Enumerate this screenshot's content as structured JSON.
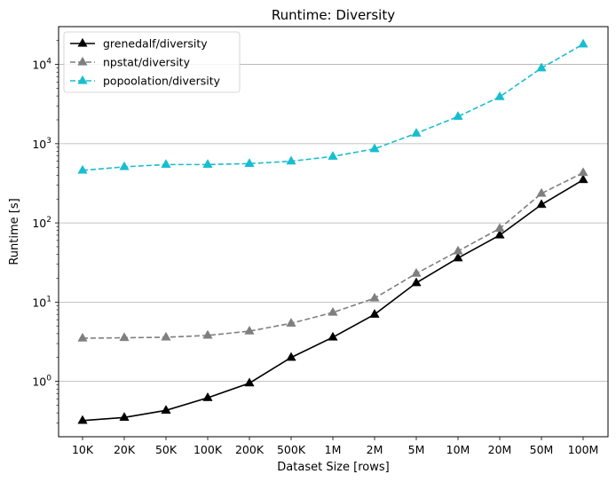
{
  "chart_data": {
    "type": "line",
    "title": "Runtime:  Diversity",
    "xlabel": "Dataset Size  [rows]",
    "ylabel": "Runtime  [s]",
    "yscale": "log",
    "ylim": [
      0.2,
      30000
    ],
    "y_ticks": [
      {
        "value": 1,
        "base": "10",
        "exp": "0"
      },
      {
        "value": 10,
        "base": "10",
        "exp": "1"
      },
      {
        "value": 100,
        "base": "10",
        "exp": "2"
      },
      {
        "value": 1000,
        "base": "10",
        "exp": "3"
      },
      {
        "value": 10000,
        "base": "10",
        "exp": "4"
      }
    ],
    "categories": [
      "10K",
      "20K",
      "50K",
      "100K",
      "200K",
      "500K",
      "1M",
      "2M",
      "5M",
      "10M",
      "20M",
      "50M",
      "100M"
    ],
    "grid": "horizontal",
    "legend_position": "top-left",
    "series": [
      {
        "name": "grenedalf/diversity",
        "color": "#000000",
        "dash": "solid",
        "marker": "triangle-up",
        "values": [
          0.32,
          0.35,
          0.43,
          0.62,
          0.95,
          2.0,
          3.6,
          7.0,
          17.5,
          36,
          70,
          170,
          350
        ]
      },
      {
        "name": "npstat/diversity",
        "color": "#7f7f7f",
        "dash": "dashed",
        "marker": "triangle-up",
        "values": [
          3.5,
          3.55,
          3.6,
          3.8,
          4.3,
          5.4,
          7.4,
          11.2,
          23,
          44,
          85,
          235,
          430
        ]
      },
      {
        "name": "popoolation/diversity",
        "color": "#17becf",
        "dash": "dashed",
        "marker": "triangle-up",
        "values": [
          460,
          510,
          545,
          545,
          560,
          600,
          690,
          860,
          1350,
          2200,
          3900,
          9000,
          18000
        ]
      }
    ]
  }
}
